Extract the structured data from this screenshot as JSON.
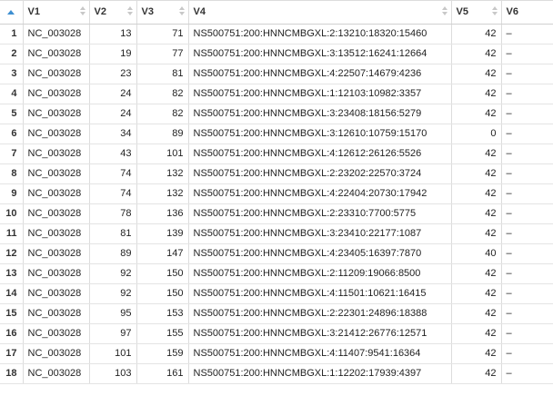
{
  "columns": [
    "V1",
    "V2",
    "V3",
    "V4",
    "V5",
    "V6"
  ],
  "rows": [
    {
      "n": "1",
      "v1": "NC_003028",
      "v2": "13",
      "v3": "71",
      "v4": "NS500751:200:HNNCMBGXL:2:13210:18320:15460",
      "v5": "42",
      "v6": "–"
    },
    {
      "n": "2",
      "v1": "NC_003028",
      "v2": "19",
      "v3": "77",
      "v4": "NS500751:200:HNNCMBGXL:3:13512:16241:12664",
      "v5": "42",
      "v6": "–"
    },
    {
      "n": "3",
      "v1": "NC_003028",
      "v2": "23",
      "v3": "81",
      "v4": "NS500751:200:HNNCMBGXL:4:22507:14679:4236",
      "v5": "42",
      "v6": "–"
    },
    {
      "n": "4",
      "v1": "NC_003028",
      "v2": "24",
      "v3": "82",
      "v4": "NS500751:200:HNNCMBGXL:1:12103:10982:3357",
      "v5": "42",
      "v6": "–"
    },
    {
      "n": "5",
      "v1": "NC_003028",
      "v2": "24",
      "v3": "82",
      "v4": "NS500751:200:HNNCMBGXL:3:23408:18156:5279",
      "v5": "42",
      "v6": "–"
    },
    {
      "n": "6",
      "v1": "NC_003028",
      "v2": "34",
      "v3": "89",
      "v4": "NS500751:200:HNNCMBGXL:3:12610:10759:15170",
      "v5": "0",
      "v6": "–"
    },
    {
      "n": "7",
      "v1": "NC_003028",
      "v2": "43",
      "v3": "101",
      "v4": "NS500751:200:HNNCMBGXL:4:12612:26126:5526",
      "v5": "42",
      "v6": "–"
    },
    {
      "n": "8",
      "v1": "NC_003028",
      "v2": "74",
      "v3": "132",
      "v4": "NS500751:200:HNNCMBGXL:2:23202:22570:3724",
      "v5": "42",
      "v6": "–"
    },
    {
      "n": "9",
      "v1": "NC_003028",
      "v2": "74",
      "v3": "132",
      "v4": "NS500751:200:HNNCMBGXL:4:22404:20730:17942",
      "v5": "42",
      "v6": "–"
    },
    {
      "n": "10",
      "v1": "NC_003028",
      "v2": "78",
      "v3": "136",
      "v4": "NS500751:200:HNNCMBGXL:2:23310:7700:5775",
      "v5": "42",
      "v6": "–"
    },
    {
      "n": "11",
      "v1": "NC_003028",
      "v2": "81",
      "v3": "139",
      "v4": "NS500751:200:HNNCMBGXL:3:23410:22177:1087",
      "v5": "42",
      "v6": "–"
    },
    {
      "n": "12",
      "v1": "NC_003028",
      "v2": "89",
      "v3": "147",
      "v4": "NS500751:200:HNNCMBGXL:4:23405:16397:7870",
      "v5": "40",
      "v6": "–"
    },
    {
      "n": "13",
      "v1": "NC_003028",
      "v2": "92",
      "v3": "150",
      "v4": "NS500751:200:HNNCMBGXL:2:11209:19066:8500",
      "v5": "42",
      "v6": "–"
    },
    {
      "n": "14",
      "v1": "NC_003028",
      "v2": "92",
      "v3": "150",
      "v4": "NS500751:200:HNNCMBGXL:4:11501:10621:16415",
      "v5": "42",
      "v6": "–"
    },
    {
      "n": "15",
      "v1": "NC_003028",
      "v2": "95",
      "v3": "153",
      "v4": "NS500751:200:HNNCMBGXL:2:22301:24896:18388",
      "v5": "42",
      "v6": "–"
    },
    {
      "n": "16",
      "v1": "NC_003028",
      "v2": "97",
      "v3": "155",
      "v4": "NS500751:200:HNNCMBGXL:3:21412:26776:12571",
      "v5": "42",
      "v6": "–"
    },
    {
      "n": "17",
      "v1": "NC_003028",
      "v2": "101",
      "v3": "159",
      "v4": "NS500751:200:HNNCMBGXL:4:11407:9541:16364",
      "v5": "42",
      "v6": "–"
    },
    {
      "n": "18",
      "v1": "NC_003028",
      "v2": "103",
      "v3": "161",
      "v4": "NS500751:200:HNNCMBGXL:1:12202:17939:4397",
      "v5": "42",
      "v6": "–"
    }
  ],
  "colors": {
    "sort_active": "#3d8fd1",
    "sort_inactive": "#c8c8c8",
    "grid_line": "#dcdcdc"
  }
}
